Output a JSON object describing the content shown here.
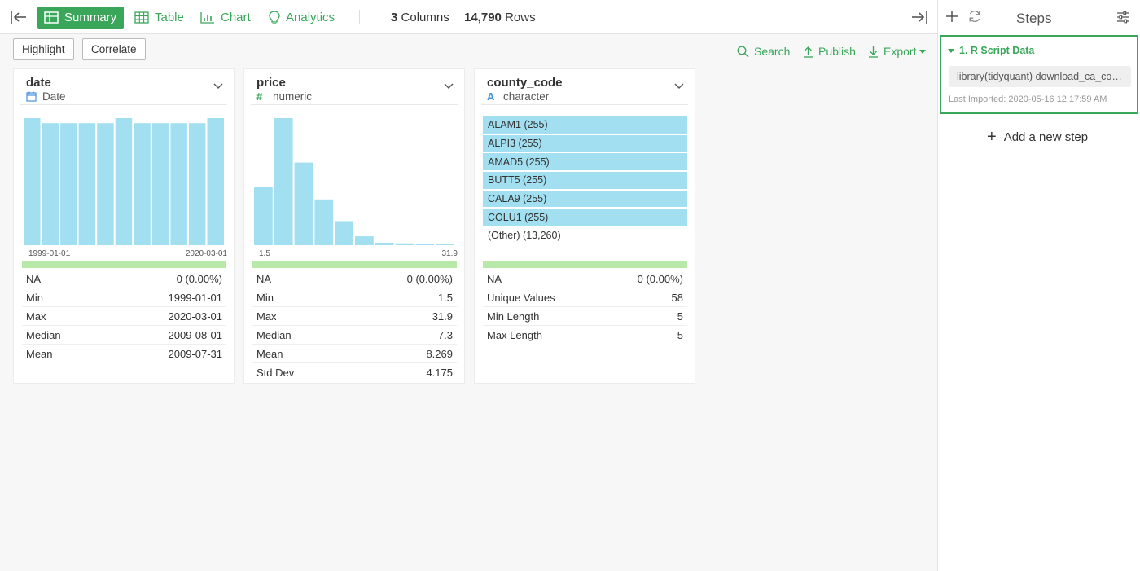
{
  "toolbar": {
    "tabs": [
      {
        "label": "Summary",
        "icon": "grid-icon",
        "active": true
      },
      {
        "label": "Table",
        "icon": "table-icon",
        "active": false
      },
      {
        "label": "Chart",
        "icon": "chart-icon",
        "active": false
      },
      {
        "label": "Analytics",
        "icon": "bulb-icon",
        "active": false
      }
    ],
    "columns_count": "3",
    "columns_label": "Columns",
    "rows_count": "14,790",
    "rows_label": "Rows"
  },
  "actions": {
    "highlight": "Highlight",
    "correlate": "Correlate",
    "search": "Search",
    "publish": "Publish",
    "export": "Export"
  },
  "steps_panel": {
    "title": "Steps",
    "step": {
      "title": "1. R Script Data",
      "code": "library(tidyquant) download_ca_cou…",
      "meta": "Last Imported: 2020-05-16 12:17:59 AM"
    },
    "add_step": "Add a new step"
  },
  "colors": {
    "accent": "#3aa65a",
    "bar": "#a2dff0",
    "na_bar": "#b9e9a8"
  },
  "columns": [
    {
      "name": "date",
      "type": "Date",
      "type_icon": "calendar-icon",
      "chart_data": {
        "type": "bar",
        "values": [
          100,
          96,
          96,
          96,
          96,
          100,
          96,
          96,
          96,
          96,
          100
        ],
        "x_min_label": "1999-01-01",
        "x_max_label": "2020-03-01"
      },
      "stats": [
        {
          "label": "NA",
          "value": "0 (0.00%)"
        },
        {
          "label": "Min",
          "value": "1999-01-01"
        },
        {
          "label": "Max",
          "value": "2020-03-01"
        },
        {
          "label": "Median",
          "value": "2009-08-01"
        },
        {
          "label": "Mean",
          "value": "2009-07-31"
        }
      ]
    },
    {
      "name": "price",
      "type": "numeric",
      "type_icon": "hash-icon",
      "chart_data": {
        "type": "bar",
        "values": [
          46,
          100,
          65,
          36,
          19,
          7,
          2,
          1.5,
          1,
          0.7
        ],
        "x_min_label": "1.5",
        "x_max_label": "31.9"
      },
      "stats": [
        {
          "label": "NA",
          "value": "0 (0.00%)"
        },
        {
          "label": "Min",
          "value": "1.5"
        },
        {
          "label": "Max",
          "value": "31.9"
        },
        {
          "label": "Median",
          "value": "7.3"
        },
        {
          "label": "Mean",
          "value": "8.269"
        },
        {
          "label": "Std Dev",
          "value": "4.175"
        }
      ]
    },
    {
      "name": "county_code",
      "type": "character",
      "type_icon": "letter-a-icon",
      "categories": [
        {
          "label": "ALAM1 (255)",
          "share": 1
        },
        {
          "label": "ALPI3 (255)",
          "share": 1
        },
        {
          "label": "AMAD5 (255)",
          "share": 1
        },
        {
          "label": "BUTT5 (255)",
          "share": 1
        },
        {
          "label": "CALA9 (255)",
          "share": 1
        },
        {
          "label": "COLU1 (255)",
          "share": 1
        },
        {
          "label": "(Other) (13,260)",
          "share": 0
        }
      ],
      "stats": [
        {
          "label": "NA",
          "value": "0 (0.00%)"
        },
        {
          "label": "Unique Values",
          "value": "58"
        },
        {
          "label": "Min Length",
          "value": "5"
        },
        {
          "label": "Max Length",
          "value": "5"
        }
      ]
    }
  ]
}
